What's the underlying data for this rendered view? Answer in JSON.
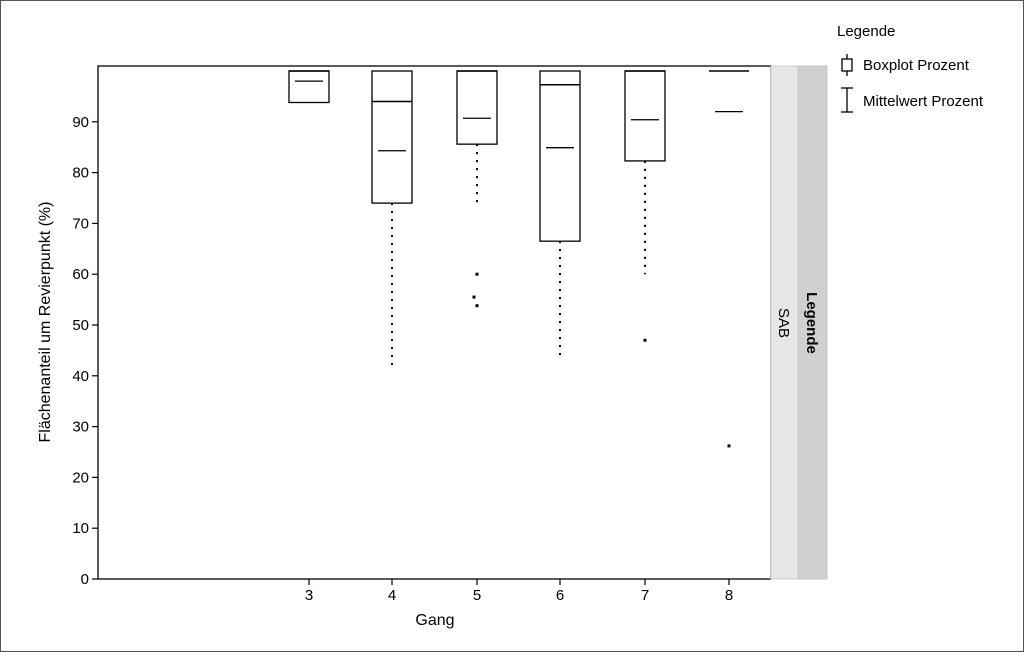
{
  "chart_data": {
    "type": "box",
    "xlabel": "Gang",
    "ylabel": "Flächenanteil um Revierpunkt (%)",
    "ylim": [
      0,
      100
    ],
    "yticks": [
      0,
      10,
      20,
      30,
      40,
      50,
      60,
      70,
      80,
      90
    ],
    "categories": [
      "3",
      "4",
      "5",
      "6",
      "7",
      "8"
    ],
    "boxes": [
      {
        "category": "3",
        "q1": 93.8,
        "median": 100,
        "q3": 100,
        "whisker_low": null,
        "mean": 98.0,
        "outliers": []
      },
      {
        "category": "4",
        "q1": 74.0,
        "median": 94.0,
        "q3": 100,
        "whisker_low": 42.0,
        "mean": 84.3,
        "outliers": []
      },
      {
        "category": "5",
        "q1": 85.6,
        "median": 100,
        "q3": 100,
        "whisker_low": 73.8,
        "mean": 90.7,
        "outliers": [
          60.0,
          55.5,
          53.8
        ]
      },
      {
        "category": "6",
        "q1": 66.5,
        "median": 97.3,
        "q3": 100,
        "whisker_low": 44.0,
        "mean": 84.9,
        "outliers": []
      },
      {
        "category": "7",
        "q1": 82.3,
        "median": 100,
        "q3": 100,
        "whisker_low": 60.0,
        "mean": 90.4,
        "outliers": [
          47.0
        ]
      },
      {
        "category": "8",
        "q1": 100,
        "median": 100,
        "q3": 100,
        "whisker_low": null,
        "mean": 92.0,
        "outliers": [
          26.2
        ]
      }
    ],
    "strip_label": "SAB",
    "strip_title": "Legende",
    "legend": {
      "title": "Legende",
      "items": [
        "Boxplot Prozent",
        "Mittelwert Prozent"
      ]
    }
  }
}
